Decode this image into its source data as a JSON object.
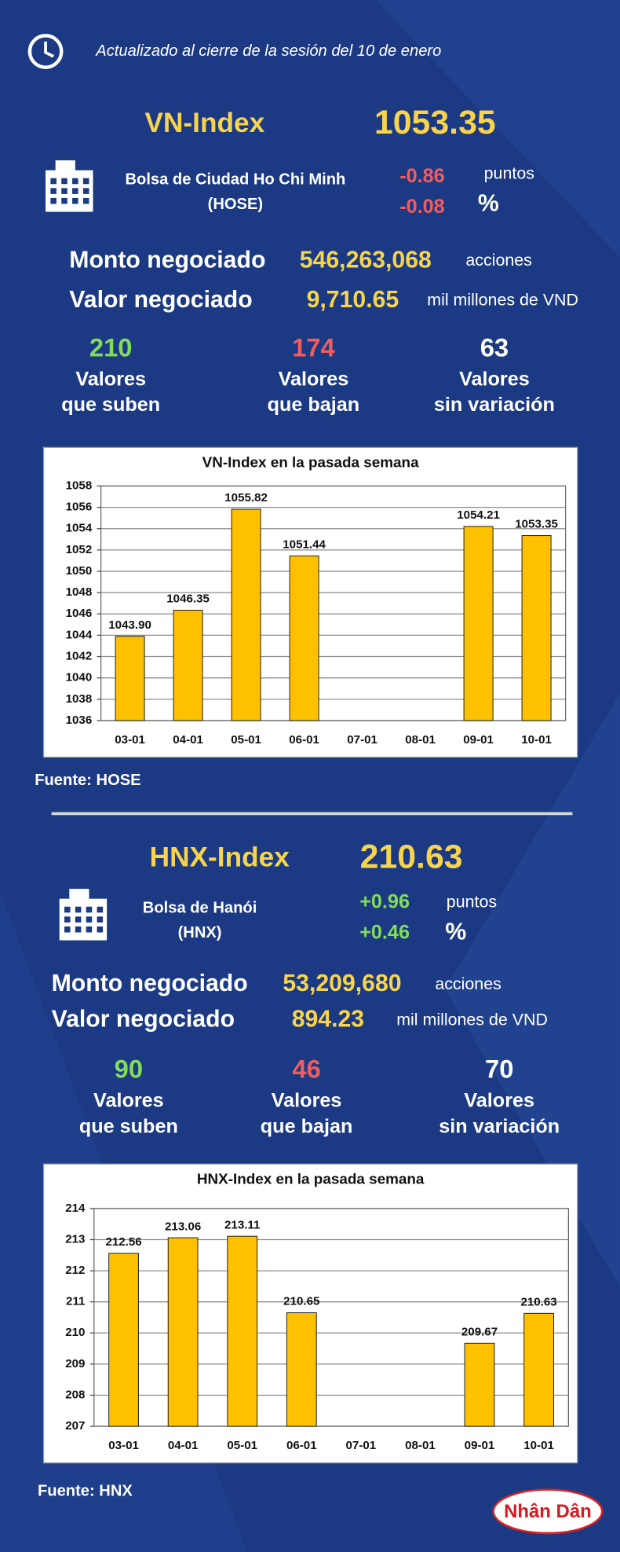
{
  "header": {
    "updated": "Actualizado al cierre de la sesión del 10 de enero"
  },
  "sections": [
    {
      "index_name": "VN-Index",
      "index_value": "1053.35",
      "exchange": [
        "Bolsa de Ciudad Ho Chi Minh",
        "(HOSE)"
      ],
      "change_points": "-0.86",
      "points_unit": "puntos",
      "change_percent": "-0.08",
      "percent_unit": "%",
      "volume_label": "Monto negociado",
      "volume": "546,263,068",
      "volume_unit": "acciones",
      "value_label": "Valor negociado",
      "value": "9,710.65",
      "value_unit": "mil millones de VND",
      "stats": [
        {
          "count": "210",
          "lines": [
            "Valores",
            "que suben"
          ]
        },
        {
          "count": "174",
          "lines": [
            "Valores",
            "que bajan"
          ]
        },
        {
          "count": "63",
          "lines": [
            "Valores",
            "sin variación"
          ]
        }
      ],
      "source": "Fuente: HOSE"
    },
    {
      "index_name": "HNX-Index",
      "index_value": "210.63",
      "exchange": [
        "Bolsa de Hanói",
        "(HNX)"
      ],
      "change_points": "+0.96",
      "points_unit": "puntos",
      "change_percent": "+0.46",
      "percent_unit": "%",
      "volume_label": "Monto negociado",
      "volume": "53,209,680",
      "volume_unit": "acciones",
      "value_label": "Valor negociado",
      "value": "894.23",
      "value_unit": "mil millones de VND",
      "stats": [
        {
          "count": "90",
          "lines": [
            "Valores",
            "que suben"
          ]
        },
        {
          "count": "46",
          "lines": [
            "Valores",
            "que bajan"
          ]
        },
        {
          "count": "70",
          "lines": [
            "Valores",
            "sin variación"
          ]
        }
      ],
      "source": "Fuente:  HNX"
    }
  ],
  "chart_data": [
    {
      "type": "bar",
      "title": "VN-Index en la pasada semana",
      "categories": [
        "03-01",
        "04-01",
        "05-01",
        "06-01",
        "07-01",
        "08-01",
        "09-01",
        "10-01"
      ],
      "values": [
        1043.9,
        1046.35,
        1055.82,
        1051.44,
        null,
        null,
        1054.21,
        1053.35
      ],
      "value_labels": [
        "1043.90",
        "1046.35",
        "1055.82",
        "1051.44",
        null,
        null,
        "1054.21",
        "1053.35"
      ],
      "color": "#ffc000",
      "ylim": [
        1036,
        1058
      ],
      "yticks": [
        1036,
        1038,
        1040,
        1042,
        1044,
        1046,
        1048,
        1050,
        1052,
        1054,
        1056,
        1058
      ],
      "grid": true
    },
    {
      "type": "bar",
      "title": "HNX-Index en la pasada semana",
      "categories": [
        "03-01",
        "04-01",
        "05-01",
        "06-01",
        "07-01",
        "08-01",
        "09-01",
        "10-01"
      ],
      "values": [
        212.56,
        213.06,
        213.11,
        210.65,
        null,
        null,
        209.67,
        210.63
      ],
      "value_labels": [
        "212.56",
        "213.06",
        "213.11",
        "210.65",
        null,
        null,
        "209.67",
        "210.63"
      ],
      "color": "#ffc000",
      "ylim": [
        207,
        214
      ],
      "yticks": [
        207,
        208,
        209,
        210,
        211,
        212,
        213,
        214
      ],
      "grid": true
    }
  ],
  "logo": "Nhân Dân"
}
